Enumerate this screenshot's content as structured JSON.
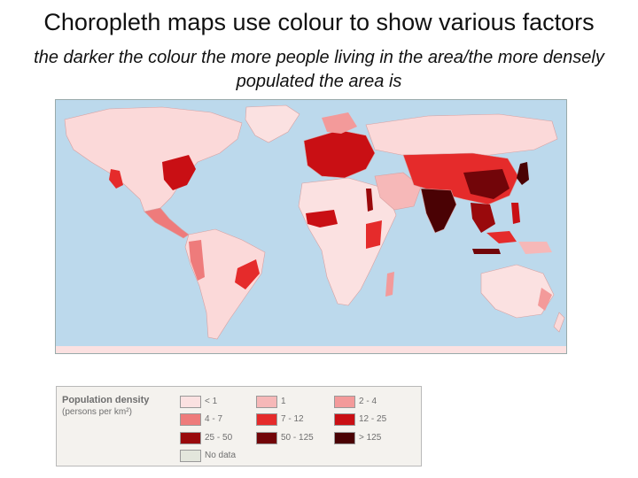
{
  "title": "Choropleth maps use colour to show various factors",
  "subtitle": "the darker the colour the more people living in the area/the more densely populated the area is",
  "colors": {
    "ocean": "#bcd9ec",
    "land_base": "#fbd9d9",
    "border": "#9aa"
  },
  "legend": {
    "title": "Population density",
    "unit": "(persons per km²)",
    "items": [
      {
        "label": "< 1",
        "color": "#fbe1e1"
      },
      {
        "label": "1",
        "color": "#f6b8b8"
      },
      {
        "label": "2 - 4",
        "color": "#f39a9a"
      },
      {
        "label": "4 - 7",
        "color": "#ee7b7b"
      },
      {
        "label": "7 - 12",
        "color": "#e52b2b"
      },
      {
        "label": "12 - 25",
        "color": "#c90f14"
      },
      {
        "label": "25 - 50",
        "color": "#99090c"
      },
      {
        "label": "50 - 125",
        "color": "#720509"
      },
      {
        "label": "> 125",
        "color": "#4a0204"
      },
      {
        "label": "No data",
        "color": "#e3e6dc"
      }
    ]
  }
}
